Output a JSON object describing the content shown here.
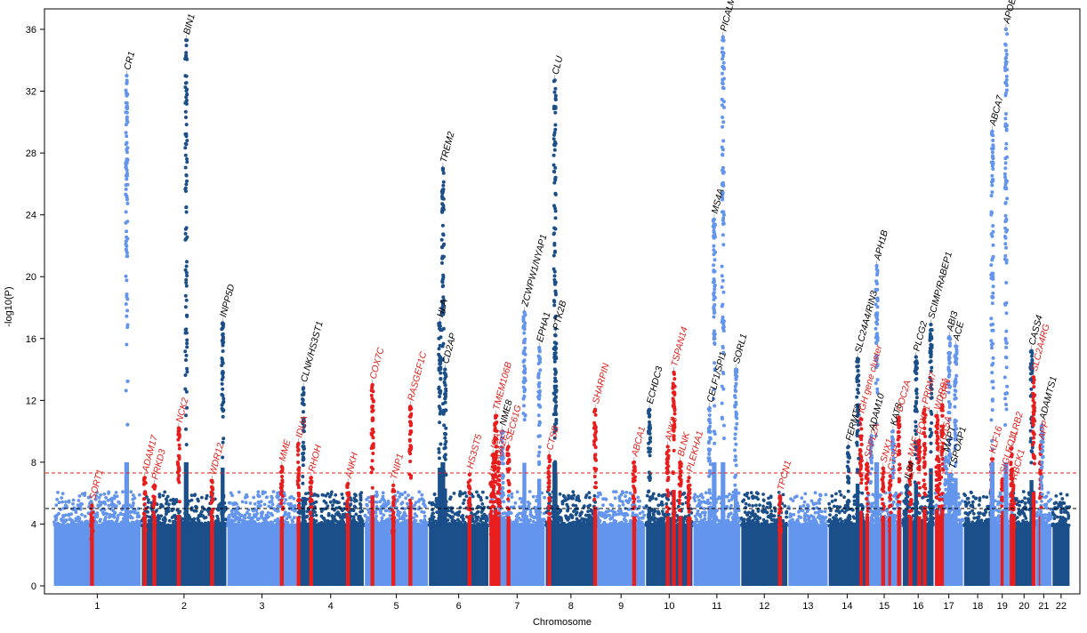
{
  "colors": {
    "odd_chromosome": "#6495ED",
    "even_chromosome": "#1B4F8A",
    "known_locus_label": "#000000",
    "novel_locus_label": "#E0201B",
    "novel_locus_points": "#E81E1E",
    "genome_wide_line": "#E0201B",
    "suggestive_line": "#000000"
  },
  "chart_data": {
    "type": "scatter",
    "variant": "manhattan",
    "title": "",
    "xlabel": "Chromosome",
    "ylabel": "-log10(P)",
    "ylim": [
      0,
      38
    ],
    "yticks": [
      0,
      4,
      8,
      12,
      16,
      20,
      24,
      28,
      32,
      36
    ],
    "grid": false,
    "legend": "none",
    "thresholds": [
      {
        "value": 7.3,
        "style": "dashed",
        "color": "red"
      },
      {
        "value": 5.0,
        "style": "dashed",
        "color": "black"
      }
    ],
    "chromosomes": [
      {
        "label": "1",
        "start": 0,
        "length": 248
      },
      {
        "label": "2",
        "start": 248,
        "length": 242
      },
      {
        "label": "3",
        "start": 490,
        "length": 198
      },
      {
        "label": "4",
        "start": 688,
        "length": 190
      },
      {
        "label": "5",
        "start": 878,
        "length": 181
      },
      {
        "label": "6",
        "start": 1059,
        "length": 171
      },
      {
        "label": "7",
        "start": 1230,
        "length": 159
      },
      {
        "label": "8",
        "start": 1389,
        "length": 145
      },
      {
        "label": "9",
        "start": 1534,
        "length": 138
      },
      {
        "label": "10",
        "start": 1672,
        "length": 134
      },
      {
        "label": "11",
        "start": 1806,
        "length": 135
      },
      {
        "label": "12",
        "start": 1941,
        "length": 133
      },
      {
        "label": "13",
        "start": 2074,
        "length": 114
      },
      {
        "label": "14",
        "start": 2188,
        "length": 107
      },
      {
        "label": "15",
        "start": 2295,
        "length": 102
      },
      {
        "label": "16",
        "start": 2397,
        "length": 90
      },
      {
        "label": "17",
        "start": 2487,
        "length": 83
      },
      {
        "label": "18",
        "start": 2570,
        "length": 80
      },
      {
        "label": "19",
        "start": 2650,
        "length": 59
      },
      {
        "label": "20",
        "start": 2709,
        "length": 64
      },
      {
        "label": "21",
        "start": 2773,
        "length": 47
      },
      {
        "label": "22",
        "start": 2820,
        "length": 51
      }
    ],
    "loci": [
      {
        "gene": "SORT1",
        "pos": 109,
        "peak": 5.2,
        "novel": true
      },
      {
        "gene": "CR1",
        "pos": 207,
        "peak": 33.0,
        "novel": false
      },
      {
        "gene": "ADAM17",
        "pos": 258,
        "peak": 7.0,
        "novel": true
      },
      {
        "gene": "PRKD3",
        "pos": 285,
        "peak": 6.5,
        "novel": true
      },
      {
        "gene": "NCK2",
        "pos": 354,
        "peak": 10.2,
        "novel": true
      },
      {
        "gene": "BIN1",
        "pos": 375,
        "peak": 35.3,
        "novel": false
      },
      {
        "gene": "WDR12",
        "pos": 448,
        "peak": 6.8,
        "novel": true
      },
      {
        "gene": "INPP5D",
        "pos": 478,
        "peak": 17.0,
        "novel": false
      },
      {
        "gene": "MME",
        "pos": 645,
        "peak": 7.7,
        "novel": true
      },
      {
        "gene": "IDUA",
        "pos": 692,
        "peak": 9.2,
        "novel": true
      },
      {
        "gene": "CLNK/HS3ST1",
        "pos": 706,
        "peak": 12.8,
        "novel": false
      },
      {
        "gene": "RHOH",
        "pos": 728,
        "peak": 7.0,
        "novel": true
      },
      {
        "gene": "ANKH",
        "pos": 832,
        "peak": 6.6,
        "novel": true
      },
      {
        "gene": "COX7C",
        "pos": 901,
        "peak": 13.0,
        "novel": true
      },
      {
        "gene": "TNIP1",
        "pos": 960,
        "peak": 6.5,
        "novel": true
      },
      {
        "gene": "RASGEF1C",
        "pos": 1008,
        "peak": 11.6,
        "novel": true
      },
      {
        "gene": "HLA",
        "pos": 1091,
        "peak": 17.0,
        "novel": false
      },
      {
        "gene": "TREM2",
        "pos": 1100,
        "peak": 27.0,
        "novel": false
      },
      {
        "gene": "CD2AP",
        "pos": 1106,
        "peak": 14.0,
        "novel": false
      },
      {
        "gene": "HS3ST5",
        "pos": 1175,
        "peak": 7.2,
        "novel": true
      },
      {
        "gene": "UMAD1",
        "pos": 1237,
        "peak": 6.7,
        "novel": true
      },
      {
        "gene": "ICA1",
        "pos": 1242,
        "peak": 8.5,
        "novel": true
      },
      {
        "gene": "TMEM106B",
        "pos": 1249,
        "peak": 11.0,
        "novel": true
      },
      {
        "gene": "JAZF1",
        "pos": 1258,
        "peak": 8.0,
        "novel": true
      },
      {
        "gene": "NME8",
        "pos": 1268,
        "peak": 10.0,
        "novel": false
      },
      {
        "gene": "SEC61G",
        "pos": 1285,
        "peak": 9.0,
        "novel": true
      },
      {
        "gene": "ZCWPW1/NYAP1",
        "pos": 1330,
        "peak": 17.7,
        "novel": false
      },
      {
        "gene": "EPHA1",
        "pos": 1372,
        "peak": 15.4,
        "novel": false
      },
      {
        "gene": "CTSB",
        "pos": 1400,
        "peak": 8.4,
        "novel": true
      },
      {
        "gene": "CLU",
        "pos": 1416,
        "peak": 32.7,
        "novel": false
      },
      {
        "gene": "PTK2B",
        "pos": 1418,
        "peak": 16.2,
        "novel": false
      },
      {
        "gene": "SHARPIN",
        "pos": 1530,
        "peak": 11.4,
        "novel": true
      },
      {
        "gene": "ABCA1",
        "pos": 1640,
        "peak": 8.0,
        "novel": true
      },
      {
        "gene": "ECHDC3",
        "pos": 1683,
        "peak": 11.4,
        "novel": false
      },
      {
        "gene": "ANK3",
        "pos": 1735,
        "peak": 9.0,
        "novel": true
      },
      {
        "gene": "TSPAN14",
        "pos": 1752,
        "peak": 13.8,
        "novel": true
      },
      {
        "gene": "BLNK",
        "pos": 1770,
        "peak": 8.0,
        "novel": true
      },
      {
        "gene": "PLEKHA1",
        "pos": 1795,
        "peak": 7.0,
        "novel": true
      },
      {
        "gene": "CELF1/SPI1",
        "pos": 1853,
        "peak": 11.5,
        "novel": false
      },
      {
        "gene": "MS4A",
        "pos": 1866,
        "peak": 23.7,
        "novel": false
      },
      {
        "gene": "PICALM",
        "pos": 1891,
        "peak": 35.5,
        "novel": false
      },
      {
        "gene": "SORL1",
        "pos": 1927,
        "peak": 14.0,
        "novel": false
      },
      {
        "gene": "TPCN1",
        "pos": 2052,
        "peak": 5.8,
        "novel": true
      },
      {
        "gene": "FERMT2",
        "pos": 2245,
        "peak": 9.0,
        "novel": false
      },
      {
        "gene": "IGH gene cluster",
        "pos": 2280,
        "peak": 10.8,
        "novel": true
      },
      {
        "gene": "SLC24A4/RIN3",
        "pos": 2271,
        "peak": 14.7,
        "novel": false
      },
      {
        "gene": "SPPL2A",
        "pos": 2298,
        "peak": 7.9,
        "novel": true
      },
      {
        "gene": "ADAM10",
        "pos": 2310,
        "peak": 9.7,
        "novel": false
      },
      {
        "gene": "APH1B",
        "pos": 2325,
        "peak": 20.7,
        "novel": false
      },
      {
        "gene": "SNX1",
        "pos": 2343,
        "peak": 7.6,
        "novel": true
      },
      {
        "gene": "CTSH",
        "pos": 2363,
        "peak": 7.1,
        "novel": true
      },
      {
        "gene": "KAT8",
        "pos": 2371,
        "peak": 10.0,
        "novel": false
      },
      {
        "gene": "DOC2A",
        "pos": 2388,
        "peak": 10.9,
        "novel": true
      },
      {
        "gene": "IL34",
        "pos": 2410,
        "peak": 6.5,
        "novel": false
      },
      {
        "gene": "MAF",
        "pos": 2420,
        "peak": 8.0,
        "novel": true
      },
      {
        "gene": "PLCG2",
        "pos": 2436,
        "peak": 14.8,
        "novel": false
      },
      {
        "gene": "FOXF1",
        "pos": 2445,
        "peak": 9.4,
        "novel": true
      },
      {
        "gene": "PRDM7",
        "pos": 2460,
        "peak": 11.4,
        "novel": true
      },
      {
        "gene": "SCIMP/RABEP1",
        "pos": 2478,
        "peak": 16.9,
        "novel": false
      },
      {
        "gene": "WDR81",
        "pos": 2495,
        "peak": 11.0,
        "novel": true
      },
      {
        "gene": "MYO15A",
        "pos": 2500,
        "peak": 8.2,
        "novel": true
      },
      {
        "gene": "GRN",
        "pos": 2510,
        "peak": 11.7,
        "novel": true
      },
      {
        "gene": "MAPT",
        "pos": 2520,
        "peak": 8.3,
        "novel": false
      },
      {
        "gene": "ABI3",
        "pos": 2530,
        "peak": 16.1,
        "novel": false
      },
      {
        "gene": "ACE",
        "pos": 2548,
        "peak": 15.5,
        "novel": false
      },
      {
        "gene": "TSPOAP1",
        "pos": 2537,
        "peak": 7.2,
        "novel": false
      },
      {
        "gene": "KLF16",
        "pos": 2650,
        "peak": 8.2,
        "novel": true
      },
      {
        "gene": "ABCA7",
        "pos": 2651,
        "peak": 29.4,
        "novel": false
      },
      {
        "gene": "SIGLEC11",
        "pos": 2680,
        "peak": 6.9,
        "novel": true
      },
      {
        "gene": "APOE",
        "pos": 2690,
        "peak": 36.0,
        "novel": false
      },
      {
        "gene": "LILRB2",
        "pos": 2706,
        "peak": 8.9,
        "novel": true
      },
      {
        "gene": "RBCK1",
        "pos": 2711,
        "peak": 6.5,
        "novel": true
      },
      {
        "gene": "CASS4",
        "pos": 2762,
        "peak": 15.2,
        "novel": false
      },
      {
        "gene": "SLC2A4RG",
        "pos": 2768,
        "peak": 13.5,
        "novel": true
      },
      {
        "gene": "APP",
        "pos": 2788,
        "peak": 9.1,
        "novel": true
      },
      {
        "gene": "ADAMTS1",
        "pos": 2792,
        "peak": 10.4,
        "novel": false
      }
    ]
  }
}
